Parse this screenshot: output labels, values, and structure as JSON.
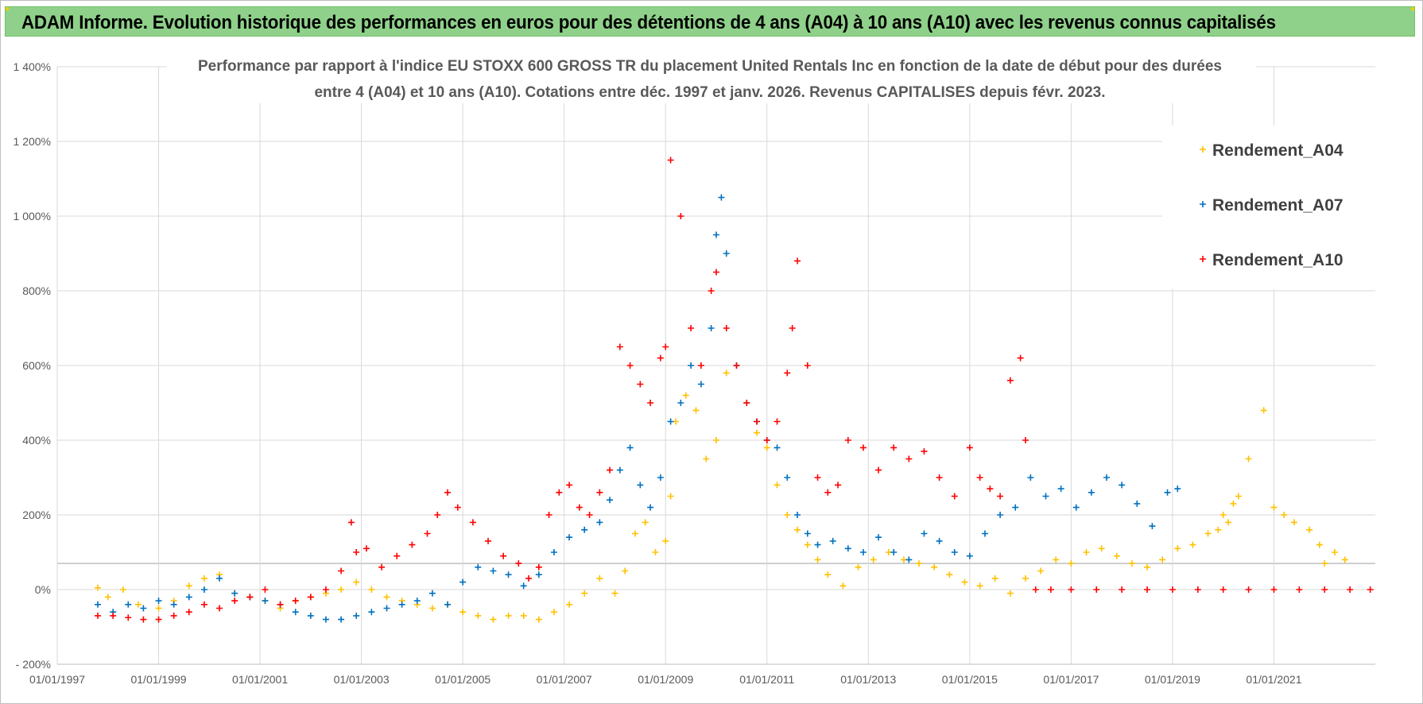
{
  "banner": {
    "title": "ADAM Informe. Evolution historique des performances en euros pour des détentions de 4 ans (A04) à 10 ans (A10) avec les revenus connus capitalisés"
  },
  "chart_data": {
    "type": "scatter",
    "title_line1": "Performance par rapport à l'indice EU STOXX 600 GROSS TR  du placement United Rentals Inc en fonction de la date de début pour des durées",
    "title_line2": "entre 4 (A04) et 10 ans (A10). Cotations entre déc. 1997 et janv. 2026. Revenus CAPITALISES  depuis févr. 2023.",
    "xlabel": "",
    "ylabel": "",
    "xlim": [
      1997.0,
      2023.0
    ],
    "ylim": [
      -200,
      1400
    ],
    "x_ticks": [
      {
        "value": 1997,
        "label": "01/01/1997"
      },
      {
        "value": 1999,
        "label": "01/01/1999"
      },
      {
        "value": 2001,
        "label": "01/01/2001"
      },
      {
        "value": 2003,
        "label": "01/01/2003"
      },
      {
        "value": 2005,
        "label": "01/01/2005"
      },
      {
        "value": 2007,
        "label": "01/01/2007"
      },
      {
        "value": 2009,
        "label": "01/01/2009"
      },
      {
        "value": 2011,
        "label": "01/01/2011"
      },
      {
        "value": 2013,
        "label": "01/01/2013"
      },
      {
        "value": 2015,
        "label": "01/01/2015"
      },
      {
        "value": 2017,
        "label": "01/01/2017"
      },
      {
        "value": 2019,
        "label": "01/01/2019"
      },
      {
        "value": 2021,
        "label": "01/01/2021"
      }
    ],
    "y_ticks": [
      {
        "value": -200,
        "label": "- 200%"
      },
      {
        "value": 0,
        "label": "0%"
      },
      {
        "value": 200,
        "label": "200%"
      },
      {
        "value": 400,
        "label": "400%"
      },
      {
        "value": 600,
        "label": "600%"
      },
      {
        "value": 800,
        "label": "800%"
      },
      {
        "value": 1000,
        "label": "1 000%"
      },
      {
        "value": 1200,
        "label": "1 200%"
      },
      {
        "value": 1400,
        "label": "1 400%"
      }
    ],
    "extra_hline": 70,
    "grid": true,
    "legend_position": "top-right",
    "series": [
      {
        "name": "Rendement_A04",
        "color": "#ffc000",
        "x": [
          1997.8,
          1998.0,
          1998.3,
          1998.6,
          1999.0,
          1999.3,
          1999.6,
          1999.9,
          2000.2,
          2000.5,
          2000.8,
          2001.1,
          2001.4,
          2001.7,
          2002.0,
          2002.3,
          2002.6,
          2002.9,
          2003.2,
          2003.5,
          2003.8,
          2004.1,
          2004.4,
          2004.7,
          2005.0,
          2005.3,
          2005.6,
          2005.9,
          2006.2,
          2006.5,
          2006.8,
          2007.1,
          2007.4,
          2007.7,
          2008.0,
          2008.2,
          2008.4,
          2008.6,
          2008.8,
          2009.0,
          2009.1,
          2009.2,
          2009.4,
          2009.6,
          2009.8,
          2010.0,
          2010.2,
          2010.4,
          2010.6,
          2010.8,
          2011.0,
          2011.2,
          2011.4,
          2011.6,
          2011.8,
          2012.0,
          2012.2,
          2012.5,
          2012.8,
          2013.1,
          2013.4,
          2013.7,
          2014.0,
          2014.3,
          2014.6,
          2014.9,
          2015.2,
          2015.5,
          2015.8,
          2016.1,
          2016.4,
          2016.7,
          2017.0,
          2017.3,
          2017.6,
          2017.9,
          2018.2,
          2018.5,
          2018.8,
          2019.1,
          2019.4,
          2019.7,
          2019.9,
          2020.0,
          2020.1,
          2020.2,
          2020.3,
          2020.5,
          2020.8,
          2021.0,
          2021.2,
          2021.4,
          2021.7,
          2021.9,
          2022.0,
          2022.2,
          2022.4
        ],
        "values": [
          5,
          -20,
          0,
          -40,
          -50,
          -30,
          10,
          30,
          40,
          -10,
          -20,
          -30,
          -50,
          -30,
          -20,
          -10,
          0,
          20,
          0,
          -20,
          -30,
          -40,
          -50,
          -40,
          -60,
          -70,
          -80,
          -70,
          -70,
          -80,
          -60,
          -40,
          -10,
          30,
          -10,
          50,
          150,
          180,
          100,
          130,
          250,
          450,
          520,
          480,
          350,
          400,
          580,
          600,
          500,
          420,
          380,
          280,
          200,
          160,
          120,
          80,
          40,
          10,
          60,
          80,
          100,
          80,
          70,
          60,
          40,
          20,
          10,
          30,
          -10,
          30,
          50,
          80,
          70,
          100,
          110,
          90,
          70,
          60,
          80,
          110,
          120,
          150,
          160,
          200,
          180,
          230,
          250,
          350,
          480,
          220,
          200,
          180,
          160,
          120,
          70,
          100,
          80
        ]
      },
      {
        "name": "Rendement_A07",
        "color": "#0070c0",
        "x": [
          1997.8,
          1998.1,
          1998.4,
          1998.7,
          1999.0,
          1999.3,
          1999.6,
          1999.9,
          2000.2,
          2000.5,
          2000.8,
          2001.1,
          2001.4,
          2001.7,
          2002.0,
          2002.3,
          2002.6,
          2002.9,
          2003.2,
          2003.5,
          2003.8,
          2004.1,
          2004.4,
          2004.7,
          2005.0,
          2005.3,
          2005.6,
          2005.9,
          2006.2,
          2006.5,
          2006.8,
          2007.1,
          2007.4,
          2007.7,
          2007.9,
          2008.1,
          2008.3,
          2008.5,
          2008.7,
          2008.9,
          2009.1,
          2009.3,
          2009.5,
          2009.7,
          2009.9,
          2010.0,
          2010.1,
          2010.2,
          2010.4,
          2010.6,
          2010.8,
          2011.0,
          2011.2,
          2011.4,
          2011.6,
          2011.8,
          2012.0,
          2012.3,
          2012.6,
          2012.9,
          2013.2,
          2013.5,
          2013.8,
          2014.1,
          2014.4,
          2014.7,
          2015.0,
          2015.3,
          2015.6,
          2015.9,
          2016.2,
          2016.5,
          2016.8,
          2017.1,
          2017.4,
          2017.7,
          2018.0,
          2018.3,
          2018.6,
          2018.9,
          2019.1
        ],
        "values": [
          -40,
          -60,
          -40,
          -50,
          -30,
          -40,
          -20,
          0,
          30,
          -10,
          -20,
          -30,
          -40,
          -60,
          -70,
          -80,
          -80,
          -70,
          -60,
          -50,
          -40,
          -30,
          -10,
          -40,
          20,
          60,
          50,
          40,
          10,
          40,
          100,
          140,
          160,
          180,
          240,
          320,
          380,
          280,
          220,
          300,
          450,
          500,
          600,
          550,
          700,
          950,
          1050,
          900,
          600,
          500,
          450,
          400,
          380,
          300,
          200,
          150,
          120,
          130,
          110,
          100,
          140,
          100,
          80,
          150,
          130,
          100,
          90,
          150,
          200,
          220,
          300,
          250,
          270,
          220,
          260,
          300,
          280,
          230,
          170,
          260,
          270
        ]
      },
      {
        "name": "Rendement_A10",
        "color": "#ff0000",
        "x": [
          1997.8,
          1998.1,
          1998.4,
          1998.7,
          1999.0,
          1999.3,
          1999.6,
          1999.9,
          2000.2,
          2000.5,
          2000.8,
          2001.1,
          2001.4,
          2001.7,
          2002.0,
          2002.3,
          2002.6,
          2002.8,
          2002.9,
          2003.1,
          2003.4,
          2003.7,
          2004.0,
          2004.3,
          2004.5,
          2004.7,
          2004.9,
          2005.2,
          2005.5,
          2005.8,
          2006.1,
          2006.3,
          2006.5,
          2006.7,
          2006.9,
          2007.1,
          2007.3,
          2007.5,
          2007.7,
          2007.9,
          2008.1,
          2008.3,
          2008.5,
          2008.7,
          2008.9,
          2009.0,
          2009.1,
          2009.3,
          2009.5,
          2009.7,
          2009.9,
          2010.0,
          2010.2,
          2010.4,
          2010.6,
          2010.8,
          2011.0,
          2011.2,
          2011.4,
          2011.5,
          2011.6,
          2011.8,
          2012.0,
          2012.2,
          2012.4,
          2012.6,
          2012.9,
          2013.2,
          2013.5,
          2013.8,
          2014.1,
          2014.4,
          2014.7,
          2015.0,
          2015.2,
          2015.4,
          2015.6,
          2015.8,
          2016.0,
          2016.1,
          2016.3,
          2016.6,
          2017.0,
          2017.5,
          2018.0,
          2018.5,
          2019.0,
          2019.5,
          2020.0,
          2020.5,
          2021.0,
          2021.5,
          2022.0,
          2022.5,
          2022.9
        ],
        "values": [
          -70,
          -70,
          -75,
          -80,
          -80,
          -70,
          -60,
          -40,
          -50,
          -30,
          -20,
          0,
          -40,
          -30,
          -20,
          0,
          50,
          180,
          100,
          110,
          60,
          90,
          120,
          150,
          200,
          260,
          220,
          180,
          130,
          90,
          70,
          30,
          60,
          200,
          260,
          280,
          220,
          200,
          260,
          320,
          650,
          600,
          550,
          500,
          620,
          650,
          1150,
          1000,
          700,
          600,
          800,
          850,
          700,
          600,
          500,
          450,
          400,
          450,
          580,
          700,
          880,
          600,
          300,
          260,
          280,
          400,
          380,
          320,
          380,
          350,
          370,
          300,
          250,
          380,
          300,
          270,
          250,
          560,
          620,
          400,
          0,
          0,
          0,
          0,
          0,
          0,
          0,
          0,
          0,
          0,
          0,
          0,
          0,
          0,
          0
        ]
      }
    ]
  }
}
